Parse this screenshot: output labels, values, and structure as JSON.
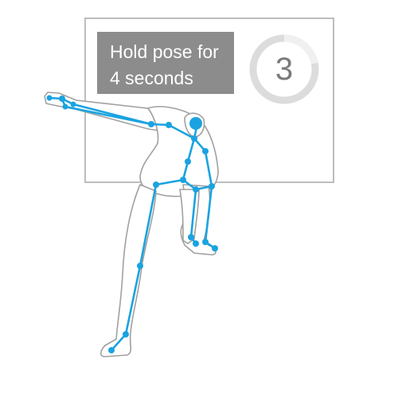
{
  "instruction": {
    "line1": "Hold pose for",
    "line2": "4 seconds"
  },
  "countdown": {
    "value": "3",
    "progress_fraction": 0.22
  },
  "colors": {
    "skeleton": "#1aa3e0",
    "figure_outline": "#a0a0a0",
    "ring_track": "#dcdcdc",
    "ring_progress": "#f0f0f0",
    "instruction_bg": "#8c8c8c"
  },
  "icons": [
    "stick-figure-illustration",
    "countdown-ring"
  ]
}
